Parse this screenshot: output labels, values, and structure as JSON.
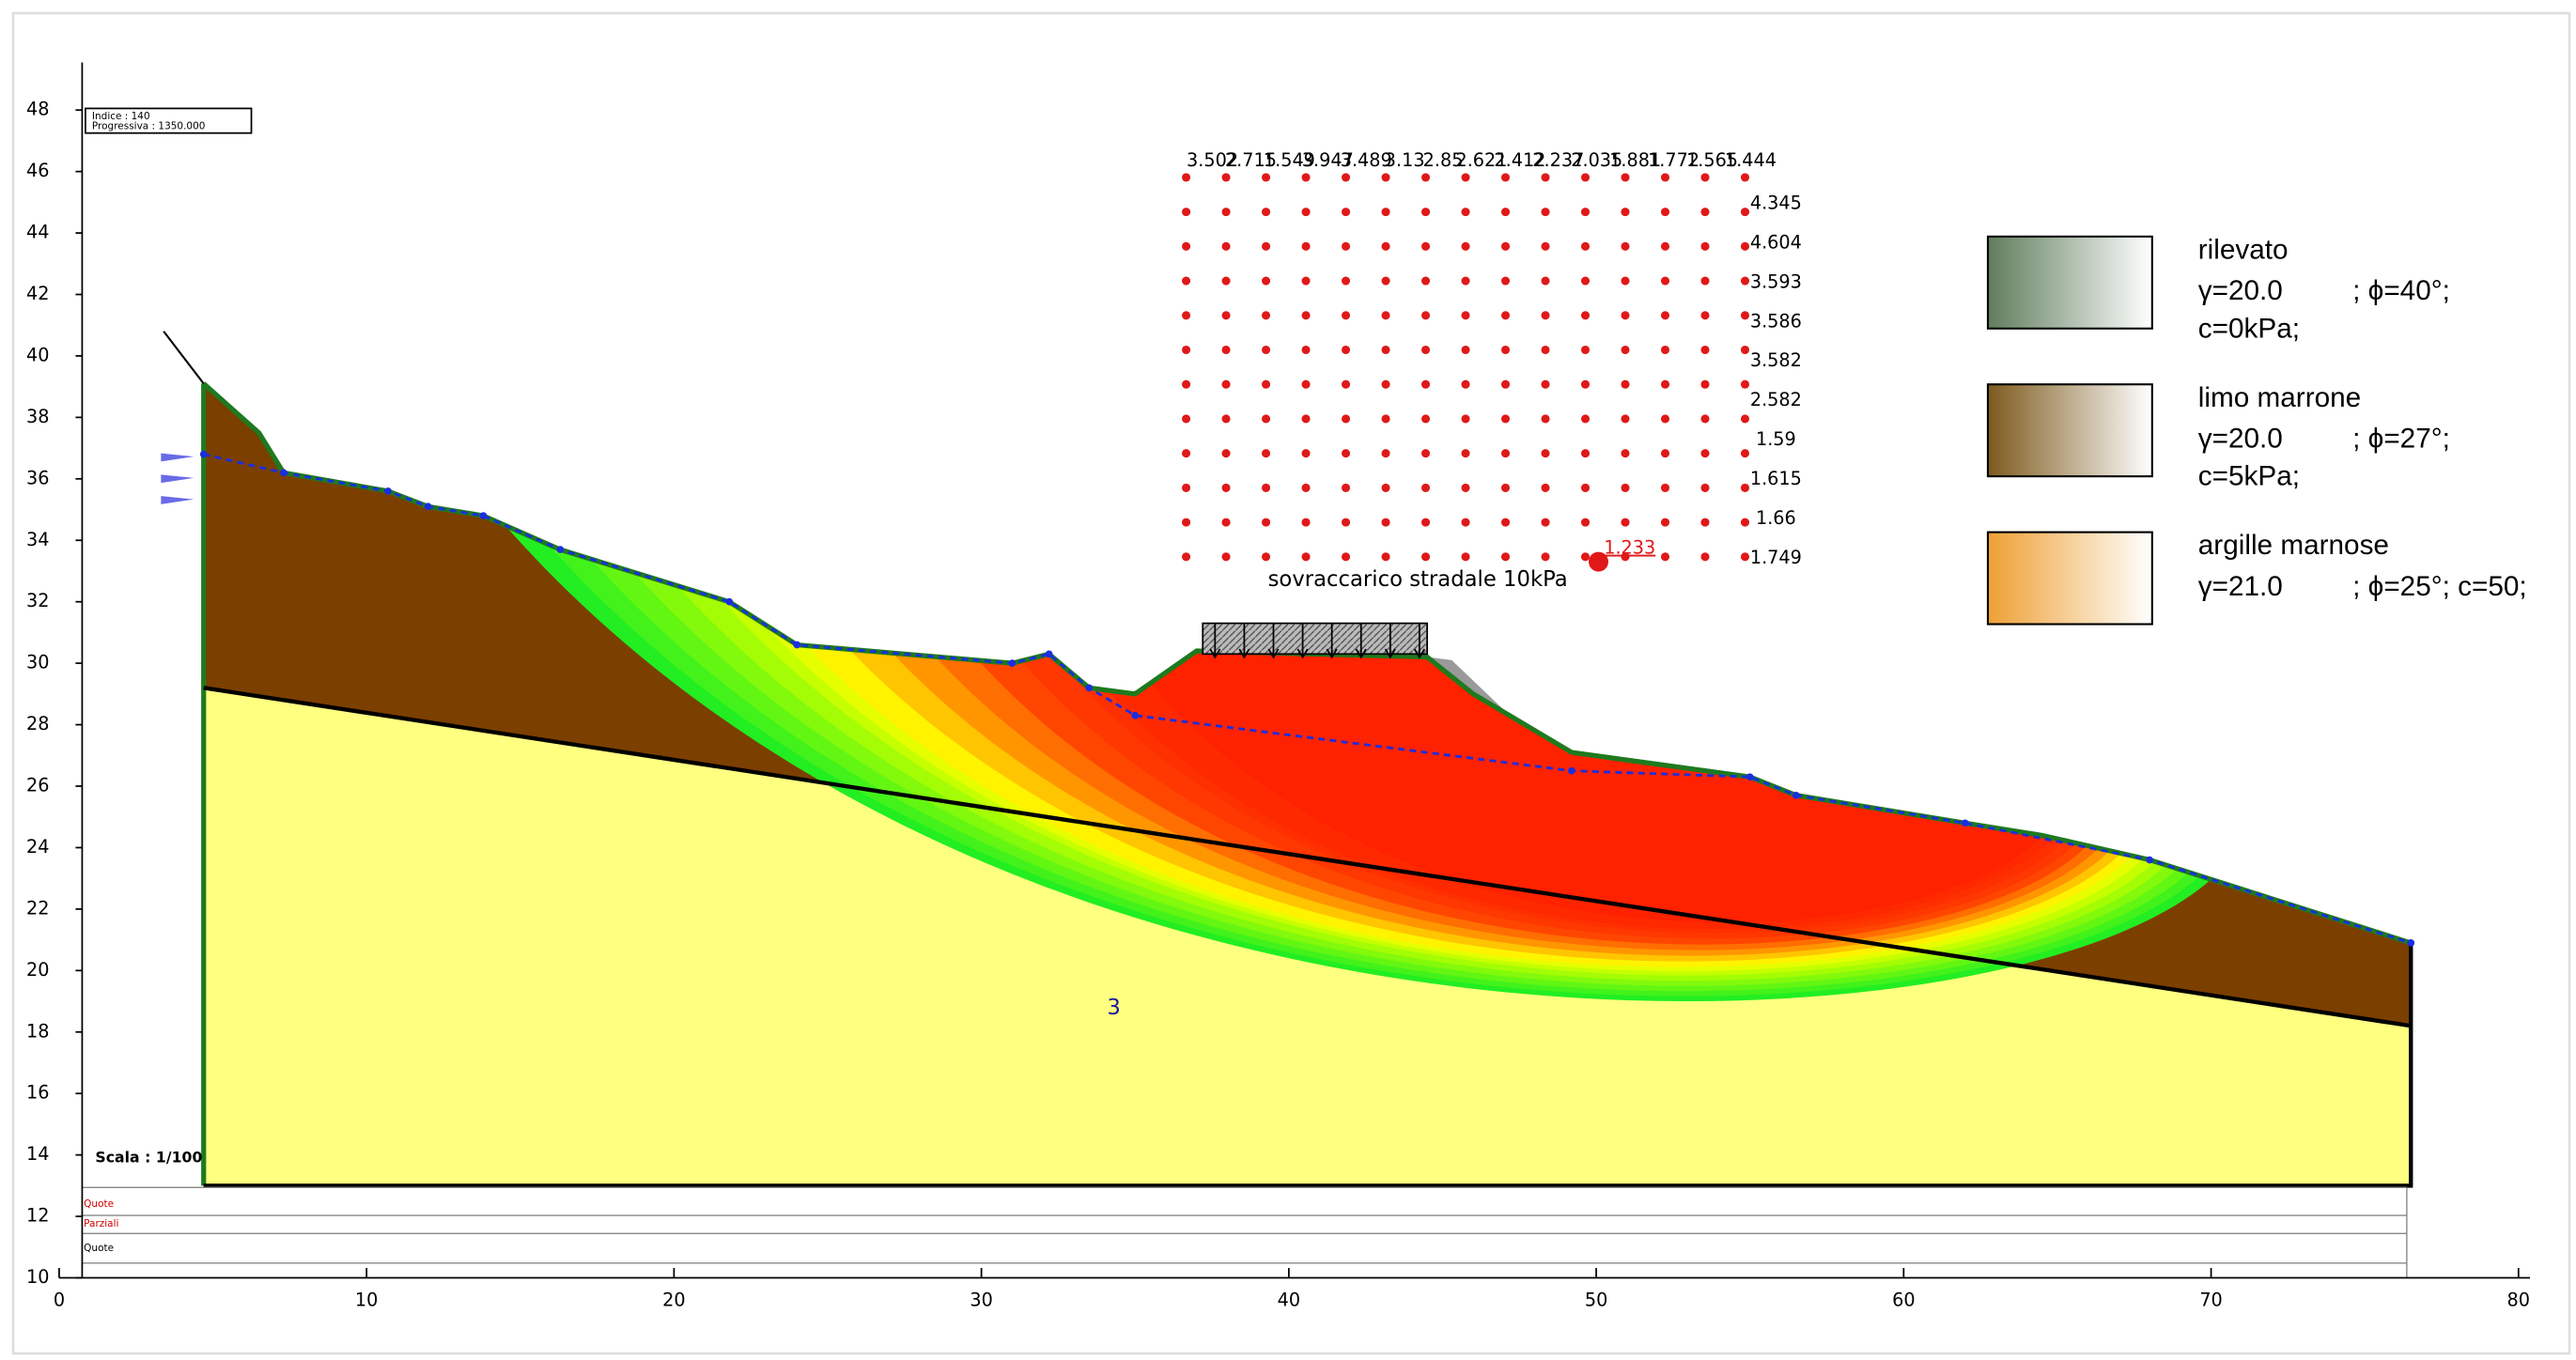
{
  "chart_data": {
    "type": "section",
    "xlim": [
      0,
      80
    ],
    "ylim": [
      10,
      48
    ],
    "xticks": [
      0,
      10,
      20,
      30,
      40,
      50,
      60,
      70,
      80
    ],
    "yticks": [
      10,
      12,
      14,
      16,
      18,
      20,
      22,
      24,
      26,
      28,
      30,
      32,
      34,
      36,
      38,
      40,
      42,
      44,
      46,
      48
    ]
  },
  "info_box": {
    "index": "Indice : 140",
    "progressive": "Progressiva : 1350.000"
  },
  "scale": "Scala : 1/100",
  "surcharge": "sovraccarico stradale 10kPa",
  "layer_label": "3",
  "strip_labels": [
    "Quote",
    "Parziali",
    "Quote"
  ],
  "legend": [
    {
      "name": "rilevato",
      "unit_weight": "γ=20.0",
      "friction": "; ϕ=40°;",
      "cohesion": "c=0kPa;",
      "colors": [
        "#5f7d5c",
        "#ffffff"
      ]
    },
    {
      "name": "limo marrone",
      "unit_weight": "γ=20.0",
      "friction": "; ϕ=27°;",
      "cohesion": "c=5kPa;",
      "colors": [
        "#7d5a1e",
        "#ffffff"
      ]
    },
    {
      "name": "argille marnose",
      "unit_weight": "γ=21.0",
      "friction": "; ϕ=25°; c=50;",
      "colors": [
        "#eea035",
        "#ffffff"
      ]
    }
  ],
  "factor_grid": {
    "top_row": [
      3.502,
      2.715,
      1.549,
      3.947,
      3.489,
      3.13,
      2.85,
      2.621,
      2.412,
      2.237,
      2.035,
      1.881,
      1.772,
      1.565,
      1.444
    ],
    "right_column": [
      4.345,
      4.604,
      3.593,
      3.586,
      3.582,
      2.582,
      1.59,
      1.615,
      1.66,
      1.749
    ],
    "minimum": 1.233
  }
}
